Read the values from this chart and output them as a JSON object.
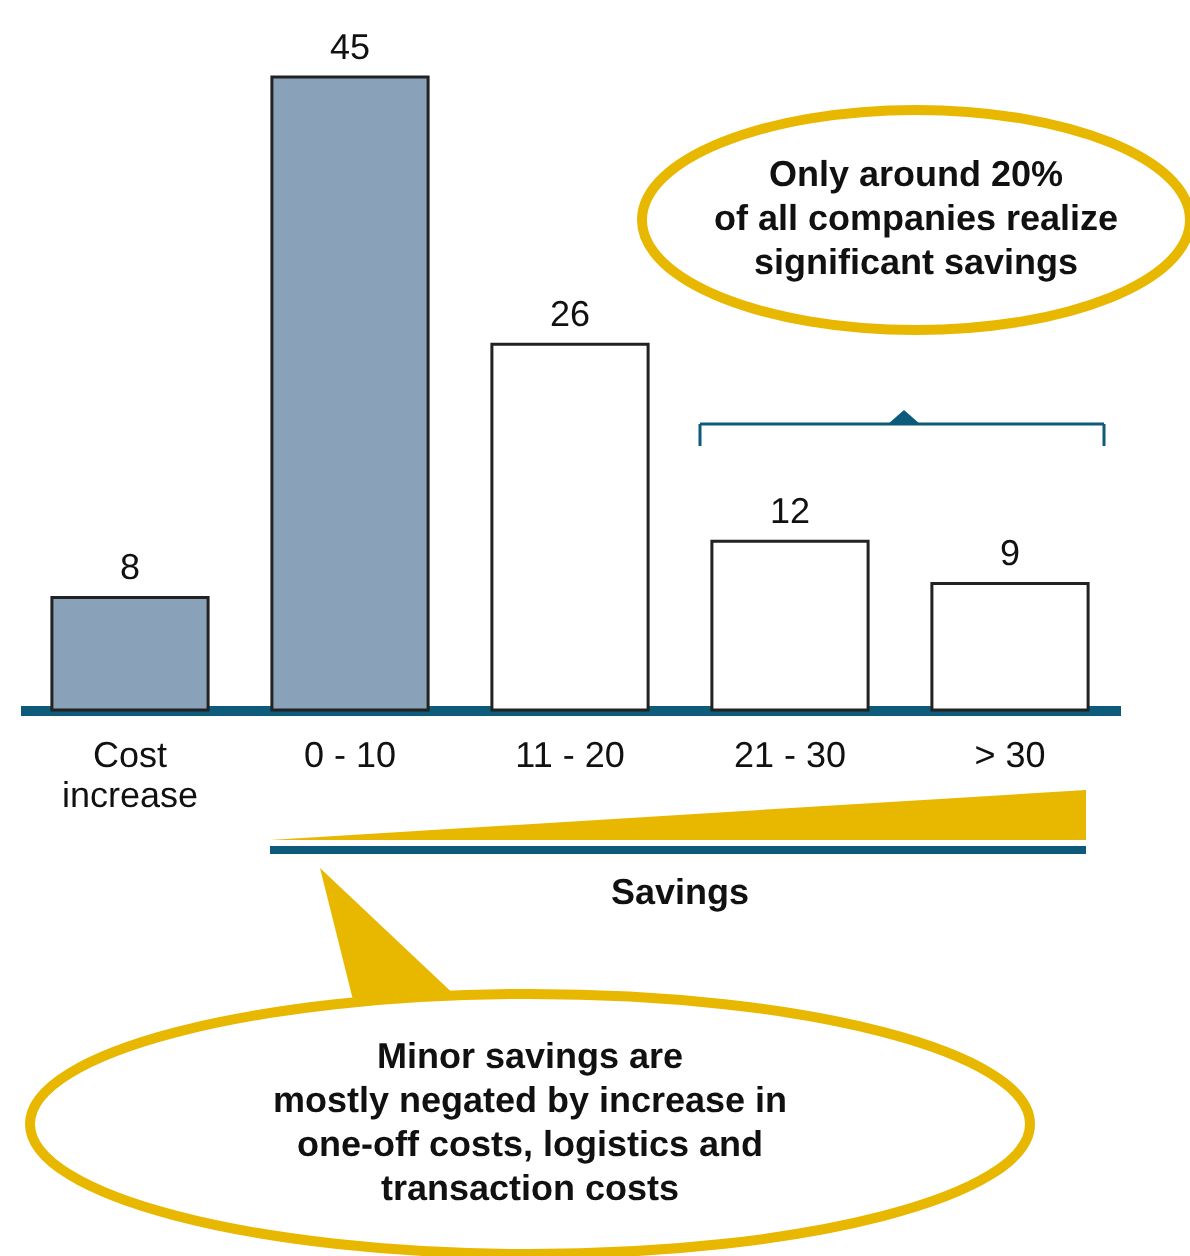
{
  "chart_data": {
    "type": "bar",
    "categories": [
      "Cost increase",
      "0 - 10",
      "11 - 20",
      "21 - 30",
      "> 30"
    ],
    "values": [
      8,
      45,
      26,
      12,
      9
    ],
    "colors": [
      "#8aa1ba",
      "#8aa1ba",
      "#ffffff",
      "#ffffff",
      "#ffffff"
    ],
    "data_labels": true,
    "xlabel": "Savings",
    "annotations": [
      "Only around 20%\nof all companies realize\nsignificant savings",
      "Minor savings are\nmostly negated by increase in\none-off costs, logistics and\ntransaction costs"
    ]
  }
}
